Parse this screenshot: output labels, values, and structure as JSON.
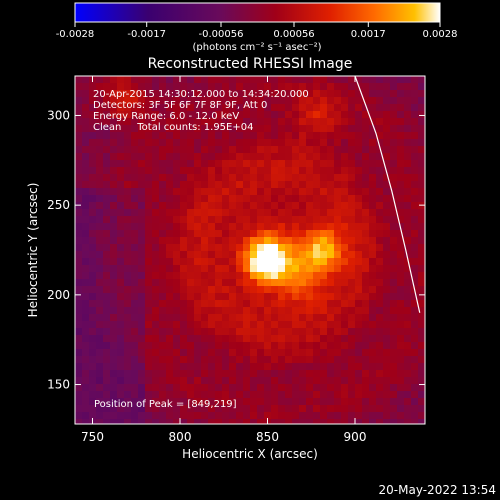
{
  "colorbar": {
    "tick_labels": [
      "-0.0028",
      "-0.0017",
      "-0.00056",
      "0.00056",
      "0.0017",
      "0.0028"
    ],
    "tick_values": [
      -0.0028,
      -0.0017,
      -0.00056,
      0.00056,
      0.0017,
      0.0028
    ],
    "range": [
      -0.0028,
      0.0028
    ],
    "units": "(photons cm⁻² s⁻¹ asec⁻²)",
    "colors": [
      "#0000ff",
      "#3a0070",
      "#6a0a5a",
      "#a00018",
      "#e02000",
      "#ff6a00",
      "#ffc000",
      "#ffffff"
    ]
  },
  "chart_data": {
    "type": "heatmap",
    "title": "Reconstructed RHESSI Image",
    "xlabel": "Heliocentric X (arcsec)",
    "ylabel": "Heliocentric Y (arcsec)",
    "xlim": [
      740,
      940
    ],
    "ylim": [
      128,
      322
    ],
    "x_ticks": [
      750,
      800,
      850,
      900
    ],
    "y_ticks": [
      150,
      200,
      250,
      300
    ],
    "annotations": [
      "20-Apr-2015 14:30:12.000 to 14:34:20.000",
      "Detectors: 3F 5F 6F 7F 8F 9F, Att 0",
      "Energy Range: 6.0 - 12.0 keV",
      "Clean     Total counts: 1.95E+04"
    ],
    "peak_label": "Position of Peak = [849,219]",
    "peak_position": [
      849,
      219
    ],
    "sources": [
      {
        "x": 849,
        "y": 219,
        "amp": 0.0028
      },
      {
        "x": 881,
        "y": 225,
        "amp": 0.0019
      },
      {
        "x": 868,
        "y": 208,
        "amp": 0.0012
      },
      {
        "x": 768,
        "y": 310,
        "amp": 0.0012
      },
      {
        "x": 878,
        "y": 300,
        "amp": 0.0009
      }
    ],
    "limb_curve": [
      [
        900,
        322
      ],
      [
        912,
        290
      ],
      [
        921,
        258
      ],
      [
        929,
        225
      ],
      [
        937,
        190
      ]
    ]
  },
  "timestamp": "20-May-2022 13:54"
}
